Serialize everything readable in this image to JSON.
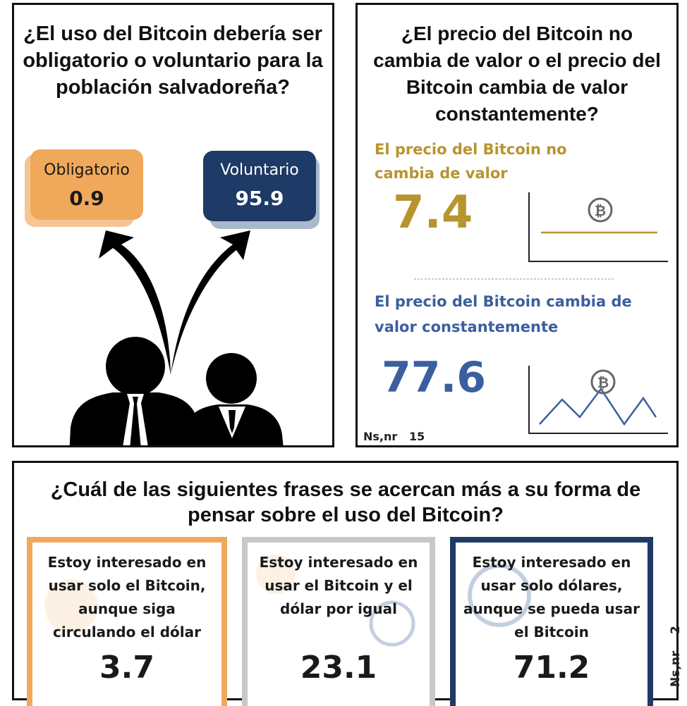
{
  "left_panel": {
    "title": "¿El uso del Bitcoin debería ser obligatorio o voluntario para la población salvadoreña?",
    "options": [
      {
        "label": "Obligatorio",
        "value": 0.9
      },
      {
        "label": "Voluntario",
        "value": 95.9
      }
    ]
  },
  "right_panel": {
    "title": "¿El precio del Bitcoin no cambia de valor o el precio del Bitcoin cambia de valor constantemente?",
    "items": [
      {
        "label": "El precio del Bitcoin no cambia de valor",
        "value": 7.4
      },
      {
        "label": "El precio del Bitcoin cambia de valor constantemente",
        "value": 77.6
      }
    ],
    "note": {
      "label": "Ns,nr",
      "value": 15
    }
  },
  "bottom_panel": {
    "title": "¿Cuál de las siguientes frases se acercan más a su forma de pensar sobre el uso del Bitcoin?",
    "cards": [
      {
        "text": "Estoy interesado en usar solo el Bitcoin, aunque siga circulando el dólar",
        "value": 3.7
      },
      {
        "text": "Estoy interesado en usar el Bitcoin y el dólar por igual",
        "value": 23.1
      },
      {
        "text": "Estoy interesado en usar solo dólares, aunque se pueda usar el Bitcoin",
        "value": 71.2
      }
    ],
    "note": {
      "label": "Ns,nr",
      "value": 2
    }
  }
}
